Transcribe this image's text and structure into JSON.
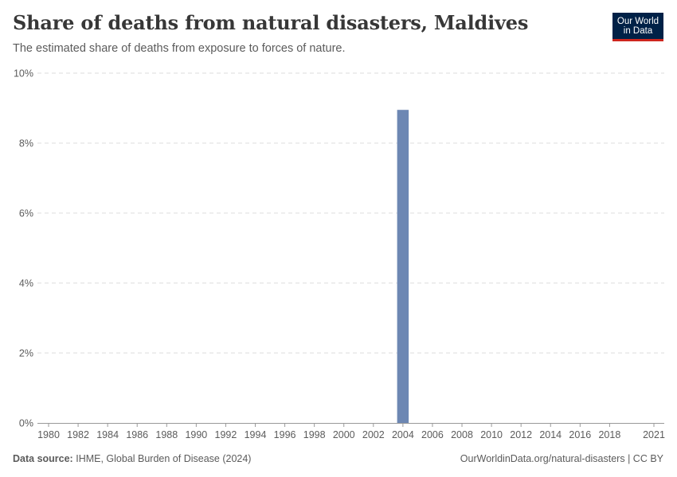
{
  "header": {
    "title": "Share of deaths from natural disasters, Maldives",
    "subtitle": "The estimated share of deaths from exposure to forces of nature.",
    "logo_line1": "Our World",
    "logo_line2": "in Data"
  },
  "footer": {
    "source_label": "Data source:",
    "source_text": "IHME, Global Burden of Disease (2024)",
    "credit": "OurWorldinData.org/natural-disasters | CC BY"
  },
  "colors": {
    "bar": "#6d87b3",
    "grid": "#dddddd",
    "axis": "#999999",
    "logo_bg": "#002147",
    "logo_accent": "#ce261e"
  },
  "chart_data": {
    "type": "bar",
    "title": "Share of deaths from natural disasters, Maldives",
    "xlabel": "",
    "ylabel": "",
    "x_range": [
      1980,
      2021
    ],
    "ylim": [
      0,
      10
    ],
    "y_ticks": [
      0,
      2,
      4,
      6,
      8,
      10
    ],
    "y_tick_labels": [
      "0%",
      "2%",
      "4%",
      "6%",
      "8%",
      "10%"
    ],
    "x_tick_labels": [
      "1980",
      "1982",
      "1984",
      "1986",
      "1988",
      "1990",
      "1992",
      "1994",
      "1996",
      "1998",
      "2000",
      "2002",
      "2004",
      "2006",
      "2008",
      "2010",
      "2012",
      "2014",
      "2016",
      "2018",
      "2021"
    ],
    "grid": true,
    "series": [
      {
        "name": "Maldives",
        "points": [
          {
            "year": 2004,
            "value": 8.95
          }
        ]
      }
    ]
  }
}
